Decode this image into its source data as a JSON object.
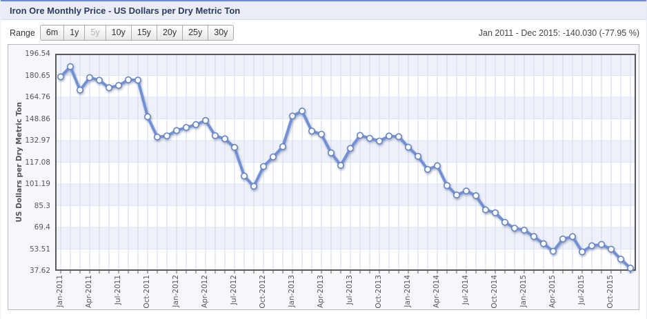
{
  "header": {
    "title": "Iron Ore Monthly Price - US Dollars per Dry Metric Ton"
  },
  "controls": {
    "range_label": "Range",
    "range_buttons": [
      {
        "label": "6m",
        "enabled": true
      },
      {
        "label": "1y",
        "enabled": true
      },
      {
        "label": "5y",
        "enabled": false
      },
      {
        "label": "10y",
        "enabled": true
      },
      {
        "label": "15y",
        "enabled": true
      },
      {
        "label": "20y",
        "enabled": true
      },
      {
        "label": "25y",
        "enabled": true
      },
      {
        "label": "30y",
        "enabled": true
      }
    ],
    "summary": "Jan 2011 - Dec 2015: -140.030 (-77.95 %)"
  },
  "chart_data": {
    "type": "line",
    "title": "Iron Ore Monthly Price - US Dollars per Dry Metric Ton",
    "xlabel": "",
    "ylabel": "US Dollars per Dry Metric Ton",
    "ylim": [
      37.62,
      196.54
    ],
    "y_tick_labels": [
      "196.54",
      "180.65",
      "164.76",
      "148.86",
      "132.97",
      "117.08",
      "101.19",
      "85.3",
      "69.4",
      "53.51",
      "37.62"
    ],
    "x": [
      "Jan-2011",
      "Feb-2011",
      "Mar-2011",
      "Apr-2011",
      "May-2011",
      "Jun-2011",
      "Jul-2011",
      "Aug-2011",
      "Sep-2011",
      "Oct-2011",
      "Nov-2011",
      "Dec-2011",
      "Jan-2012",
      "Feb-2012",
      "Mar-2012",
      "Apr-2012",
      "May-2012",
      "Jun-2012",
      "Jul-2012",
      "Aug-2012",
      "Sep-2012",
      "Oct-2012",
      "Nov-2012",
      "Dec-2012",
      "Jan-2013",
      "Feb-2013",
      "Mar-2013",
      "Apr-2013",
      "May-2013",
      "Jun-2013",
      "Jul-2013",
      "Aug-2013",
      "Sep-2013",
      "Oct-2013",
      "Nov-2013",
      "Dec-2013",
      "Jan-2014",
      "Feb-2014",
      "Mar-2014",
      "Apr-2014",
      "May-2014",
      "Jun-2014",
      "Jul-2014",
      "Aug-2014",
      "Sep-2014",
      "Oct-2014",
      "Nov-2014",
      "Dec-2014",
      "Jan-2015",
      "Feb-2015",
      "Mar-2015",
      "Apr-2015",
      "May-2015",
      "Jun-2015",
      "Jul-2015",
      "Aug-2015",
      "Sep-2015",
      "Oct-2015",
      "Nov-2015",
      "Dec-2015"
    ],
    "x_tick_labels": [
      "Jan-2011",
      "Apr-2011",
      "Jul-2011",
      "Oct-2011",
      "Jan-2012",
      "Apr-2012",
      "Jul-2012",
      "Oct-2012",
      "Jan-2013",
      "Apr-2013",
      "Jul-2013",
      "Oct-2013",
      "Jan-2014",
      "Apr-2014",
      "Jul-2014",
      "Oct-2014",
      "Jan-2015",
      "Apr-2015",
      "Jul-2015",
      "Oct-2015"
    ],
    "x_tick_every": 3,
    "series": [
      {
        "name": "Iron Ore Monthly Price",
        "values": [
          179.63,
          187.18,
          169.93,
          179.07,
          177.15,
          171.69,
          173.33,
          177.45,
          177.23,
          150.43,
          135.52,
          136.41,
          140.36,
          142.58,
          144.66,
          147.65,
          136.54,
          134.25,
          127.94,
          107.0,
          99.47,
          114.0,
          120.99,
          128.5,
          150.95,
          154.64,
          139.87,
          137.63,
          123.97,
          114.82,
          127.23,
          136.75,
          134.65,
          132.62,
          136.32,
          135.79,
          128.12,
          121.41,
          111.81,
          114.58,
          100.05,
          93.12,
          96.09,
          92.63,
          82.27,
          80.09,
          73.13,
          68.8,
          67.39,
          62.69,
          57.5,
          51.96,
          60.89,
          62.64,
          51.5,
          56.0,
          56.9,
          53.4,
          46.16,
          39.6
        ]
      }
    ],
    "grid": "on",
    "legend": "none",
    "colors": {
      "line": "#7190d5",
      "marker_fill": "#ffffff",
      "marker_stroke": "#6383c6",
      "band_light": "#eef1f9",
      "band_white": "#ffffff",
      "grid_vertical": "#ccd9ee",
      "grid_horizontal": "#dde5f3",
      "plot_border": "#57585c",
      "accent_top": "#6d89d3"
    }
  }
}
